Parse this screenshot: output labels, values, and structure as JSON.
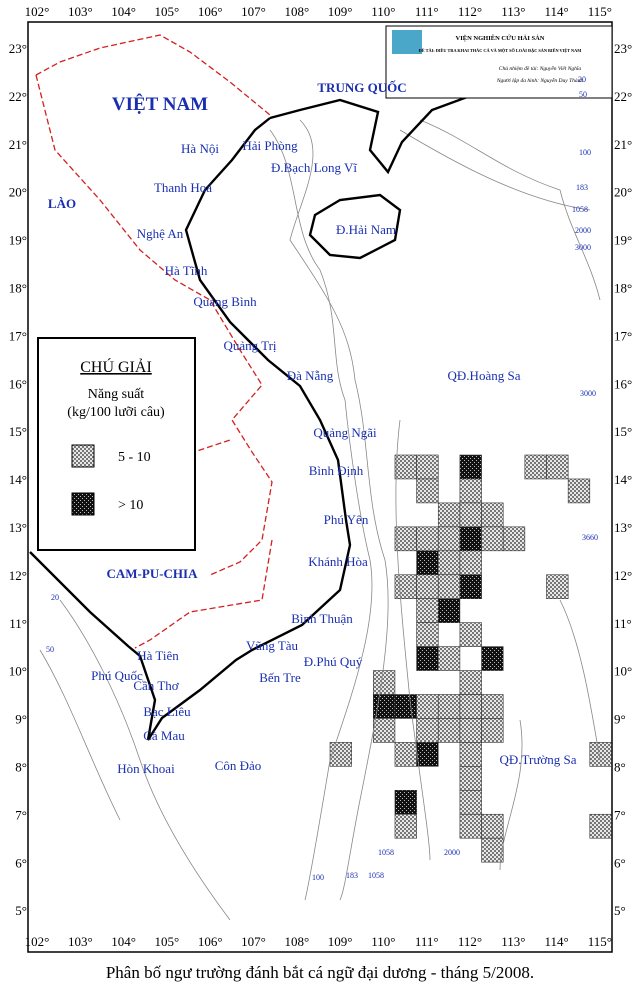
{
  "header": {
    "institute": "VIỆN NGHIÊN CỨU HẢI SẢN",
    "project": "ĐỀ TÀI: ĐIỀU TRA KHAI THÁC CÁ VÀ MỘT SỐ LOÀI ĐẶC SẢN BIỂN VIỆT NAM",
    "lead": "Chủ nhiệm đề tài: Nguyễn Viết Nghĩa",
    "author": "Người lập đa hình: Nguyễn Duy Thành"
  },
  "lon_labels": [
    "102°",
    "103°",
    "104°",
    "105°",
    "106°",
    "107°",
    "108°",
    "109°",
    "110°",
    "111°",
    "112°",
    "113°",
    "114°",
    "115°"
  ],
  "lat_labels": [
    "23°",
    "22°",
    "21°",
    "20°",
    "19°",
    "18°",
    "17°",
    "16°",
    "15°",
    "14°",
    "13°",
    "12°",
    "11°",
    "10°",
    "9°",
    "8°",
    "7°",
    "6°",
    "5°"
  ],
  "countries": [
    "VIỆT NAM",
    "TRUNG QUỐC",
    "LÀO",
    "CAM-PU-CHIA"
  ],
  "places": [
    "Hà Nội",
    "Hải Phòng",
    "Thanh Hoá",
    "Nghệ An",
    "Hà Tĩnh",
    "Quảng Bình",
    "Quảng Trị",
    "Đà Nẵng",
    "Quảng Ngãi",
    "Bình Định",
    "Phú Yên",
    "Khánh Hòa",
    "Bình Thuận",
    "Vũng Tàu",
    "Bến Tre",
    "Cần Thơ",
    "Bạc Liêu",
    "Cà Mau",
    "Hà Tiên",
    "Phú Quốc",
    "Hòn Khoai",
    "Côn Đảo",
    "Đ.Phú Quý",
    "Đ.Bạch Long Vĩ",
    "Đ.Hải Nam",
    "QĐ.Hoàng Sa",
    "QĐ.Trường Sa"
  ],
  "depth_labels": [
    "20",
    "50",
    "100",
    "183",
    "1058",
    "2000",
    "3000",
    "3000",
    "3660",
    "20",
    "50",
    "100",
    "183",
    "1058",
    "1058",
    "2000"
  ],
  "legend": {
    "title": "CHÚ GIẢI",
    "measure": "Năng suất",
    "unit": "(kg/100 lưỡi câu)",
    "classes": [
      "5 - 10",
      "> 10"
    ]
  },
  "caption": "Phân bố ngư trường đánh bắt cá ngữ đại dương - tháng 5/2008."
}
